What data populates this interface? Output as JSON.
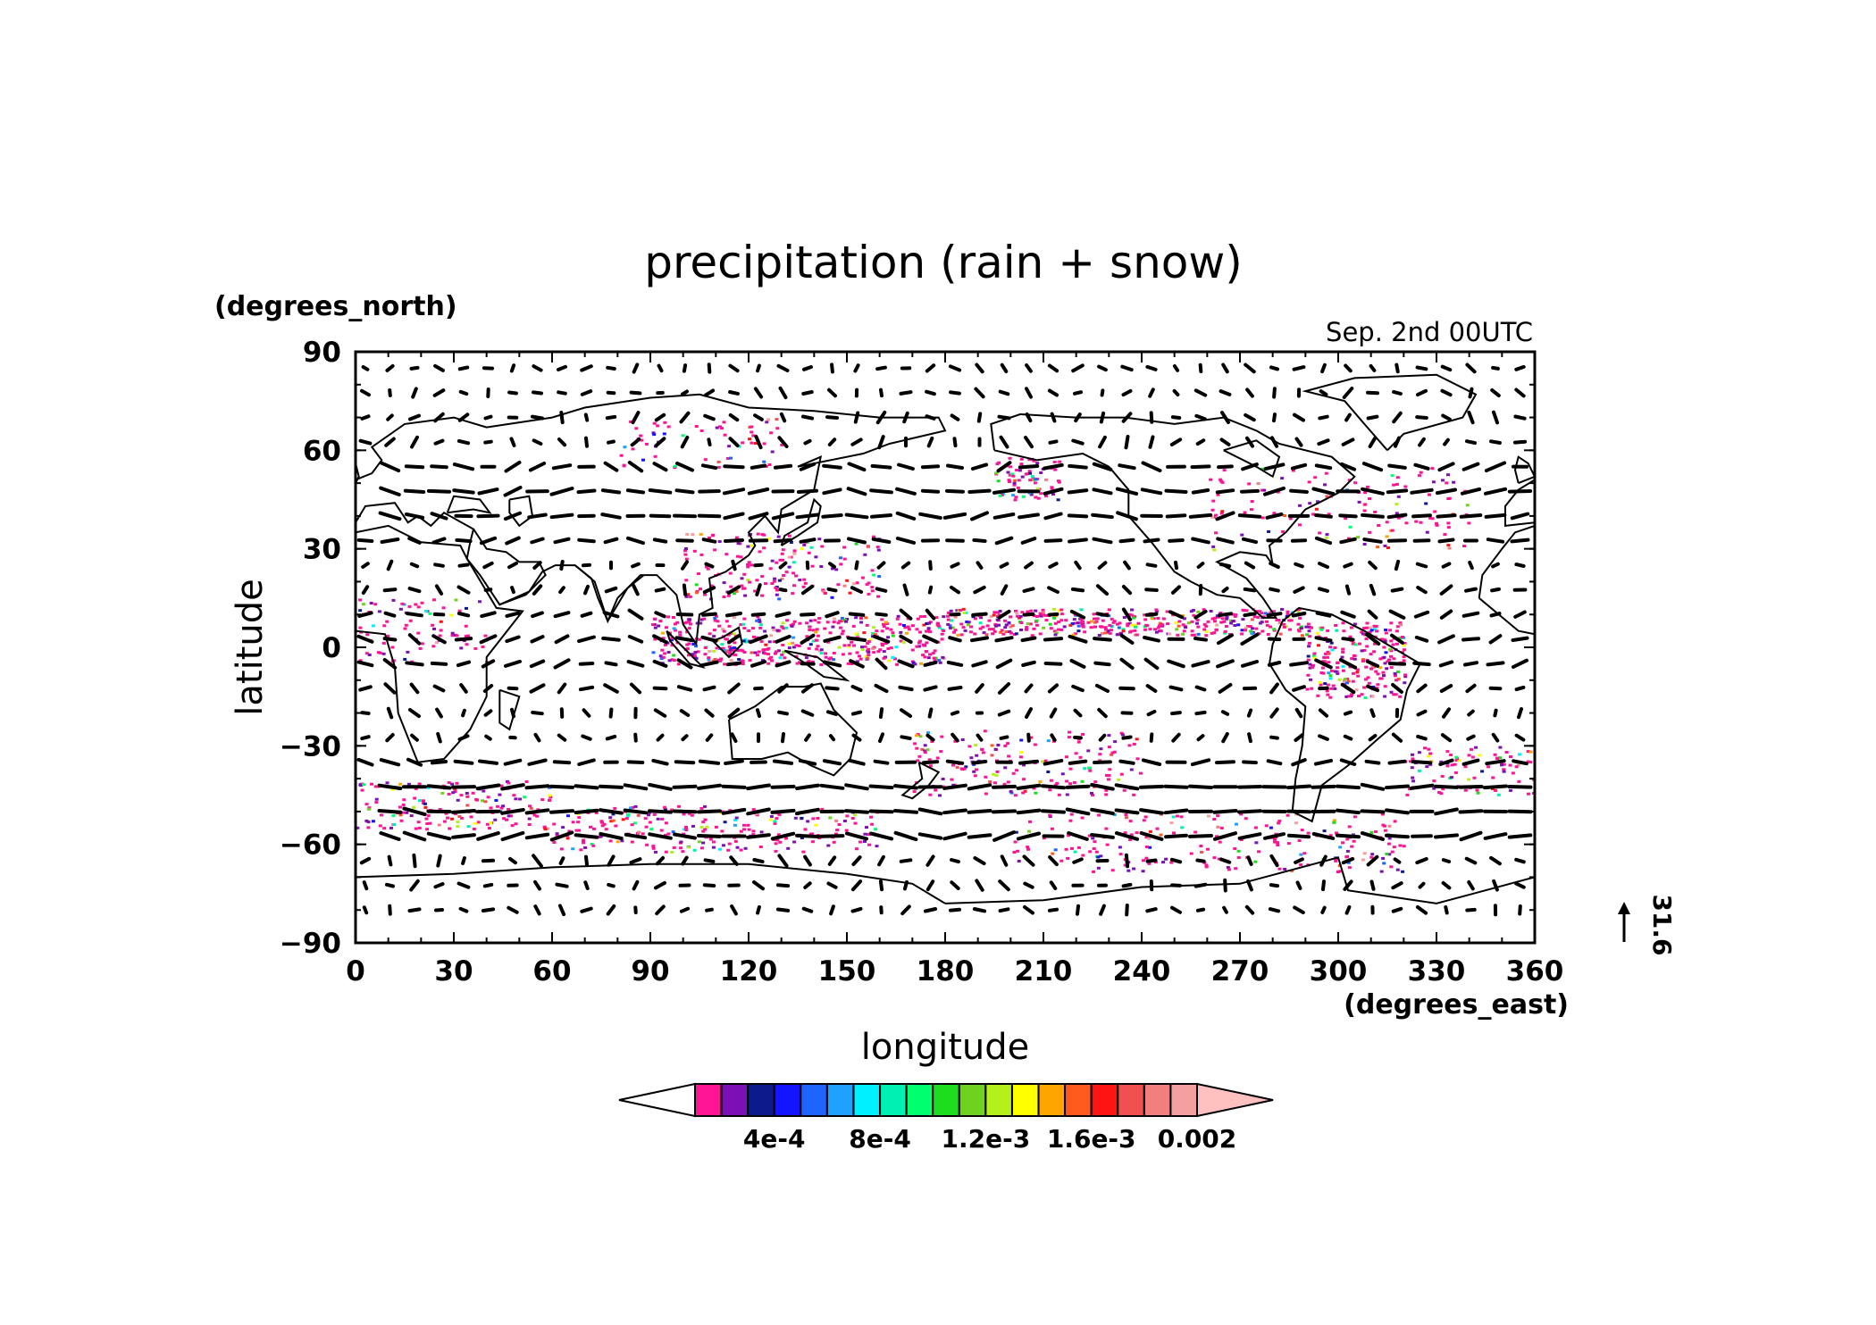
{
  "chart_data": {
    "type": "map",
    "title": "precipitation (rain + snow)",
    "time_label": "Sep. 2nd 00UTC",
    "xlabel": "longitude",
    "ylabel": "latitude",
    "x_units": "(degrees_east)",
    "y_units": "(degrees_north)",
    "xlim": [
      0,
      360
    ],
    "ylim": [
      -90,
      90
    ],
    "x_ticks": [
      "0",
      "30",
      "60",
      "90",
      "120",
      "150",
      "180",
      "210",
      "240",
      "270",
      "300",
      "330",
      "360"
    ],
    "y_ticks": [
      "90",
      "60",
      "30",
      "0",
      "−30",
      "−60",
      "−90"
    ],
    "colorbar": {
      "colors": [
        "#ff1493",
        "#7b11b5",
        "#0c1a8c",
        "#1414ff",
        "#1e64ff",
        "#1ea0ff",
        "#00f0ff",
        "#00f0b4",
        "#00ff6e",
        "#1edc1e",
        "#6ed21e",
        "#b4f01e",
        "#ffff00",
        "#ffa500",
        "#ff5a1e",
        "#ff1414",
        "#f05050",
        "#f08080",
        "#f5a0a0"
      ],
      "under_color": "#ffffff",
      "over_color": "#ffc0c0",
      "tick_labels": [
        "4e-4",
        "8e-4",
        "1.2e-3",
        "1.6e-3",
        "0.002"
      ]
    },
    "reference_vector": "31.6"
  }
}
